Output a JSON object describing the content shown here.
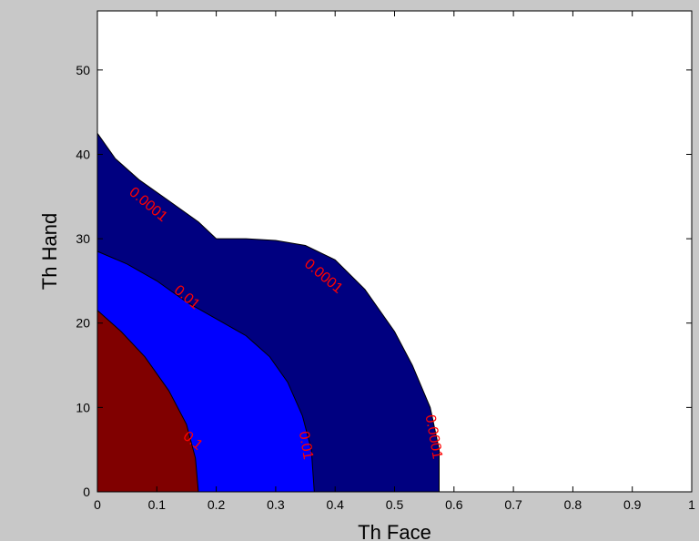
{
  "chart_data": {
    "type": "contour",
    "title": "",
    "xlabel": "Th Face",
    "ylabel": "Th Hand",
    "xlim": [
      0,
      1
    ],
    "ylim": [
      0,
      57
    ],
    "x_ticks": [
      "0",
      "0.1",
      "0.2",
      "0.3",
      "0.4",
      "0.5",
      "0.6",
      "0.7",
      "0.8",
      "0.9",
      "1"
    ],
    "y_ticks": [
      "0",
      "10",
      "20",
      "30",
      "40",
      "50"
    ],
    "grid": false,
    "colors": {
      "background": "#ffffff",
      "level_0001": "#000080",
      "level_001": "#0000ff",
      "level_01": "#800000",
      "label": "#ff0000",
      "figure": "#c8c8c8"
    },
    "levels": [
      {
        "value": 0.0001,
        "label": "0.0001",
        "boundary": [
          [
            0,
            42.5
          ],
          [
            0.03,
            39.5
          ],
          [
            0.07,
            37
          ],
          [
            0.12,
            34.5
          ],
          [
            0.17,
            32
          ],
          [
            0.2,
            30
          ],
          [
            0.25,
            30
          ],
          [
            0.3,
            29.8
          ],
          [
            0.35,
            29.2
          ],
          [
            0.4,
            27.5
          ],
          [
            0.45,
            24
          ],
          [
            0.5,
            19
          ],
          [
            0.53,
            15
          ],
          [
            0.56,
            10
          ],
          [
            0.575,
            5
          ],
          [
            0.575,
            0
          ]
        ],
        "label_positions": [
          [
            0.085,
            34
          ],
          [
            0.38,
            25.5
          ],
          [
            0.565,
            6.5
          ]
        ]
      },
      {
        "value": 0.01,
        "label": "0.01",
        "boundary": [
          [
            0,
            28.5
          ],
          [
            0.05,
            27
          ],
          [
            0.1,
            25
          ],
          [
            0.15,
            22.5
          ],
          [
            0.2,
            20.5
          ],
          [
            0.25,
            18.5
          ],
          [
            0.29,
            16
          ],
          [
            0.32,
            13
          ],
          [
            0.345,
            9
          ],
          [
            0.36,
            5
          ],
          [
            0.365,
            0
          ]
        ],
        "label_positions": [
          [
            0.15,
            23
          ],
          [
            0.35,
            5.5
          ]
        ]
      },
      {
        "value": 0.1,
        "label": "0.1",
        "boundary": [
          [
            0,
            21.5
          ],
          [
            0.04,
            19
          ],
          [
            0.08,
            16
          ],
          [
            0.12,
            12
          ],
          [
            0.15,
            8
          ],
          [
            0.165,
            4
          ],
          [
            0.17,
            0
          ]
        ],
        "label_positions": [
          [
            0.16,
            6
          ]
        ]
      }
    ]
  }
}
